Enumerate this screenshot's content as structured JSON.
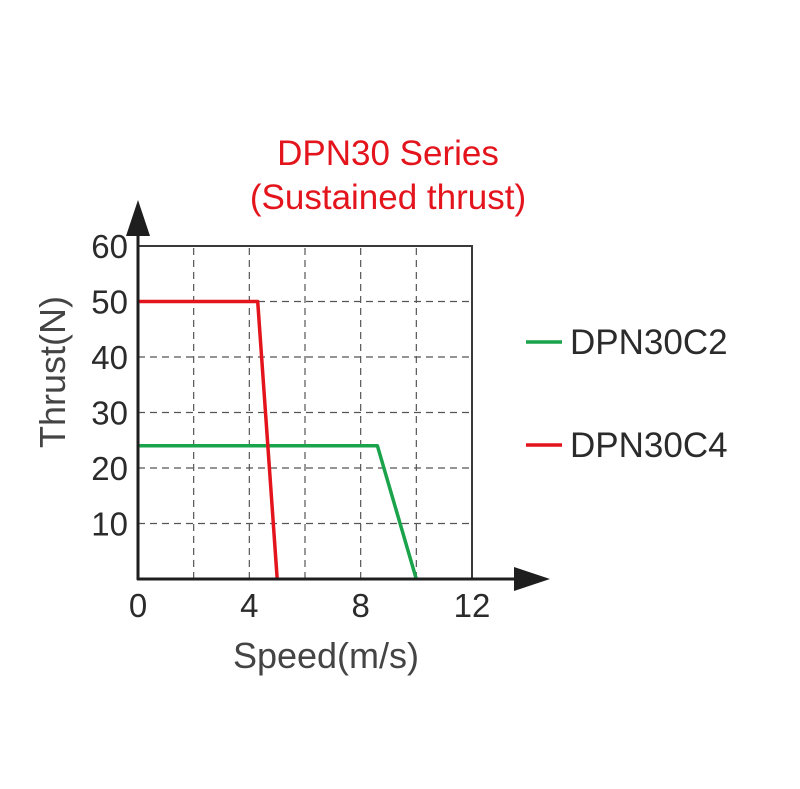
{
  "chart_data": {
    "type": "line",
    "title": "DPN30 Series",
    "subtitle": "(Sustained thrust)",
    "xlabel": "Speed(m/s)",
    "ylabel": "Thrust(N)",
    "xlim": [
      0,
      12
    ],
    "ylim": [
      0,
      60
    ],
    "x_ticks": [
      "0",
      "4",
      "8",
      "12"
    ],
    "y_ticks": [
      "10",
      "20",
      "30",
      "40",
      "50",
      "60"
    ],
    "grid": true,
    "legend_position": "right",
    "series": [
      {
        "name": "DPN30C2",
        "color": "#1aa34a",
        "x": [
          0,
          8.6,
          10
        ],
        "y": [
          24,
          24,
          0
        ]
      },
      {
        "name": "DPN30C4",
        "color": "#e3141c",
        "x": [
          0,
          4.3,
          5
        ],
        "y": [
          50,
          50,
          0
        ]
      }
    ]
  }
}
